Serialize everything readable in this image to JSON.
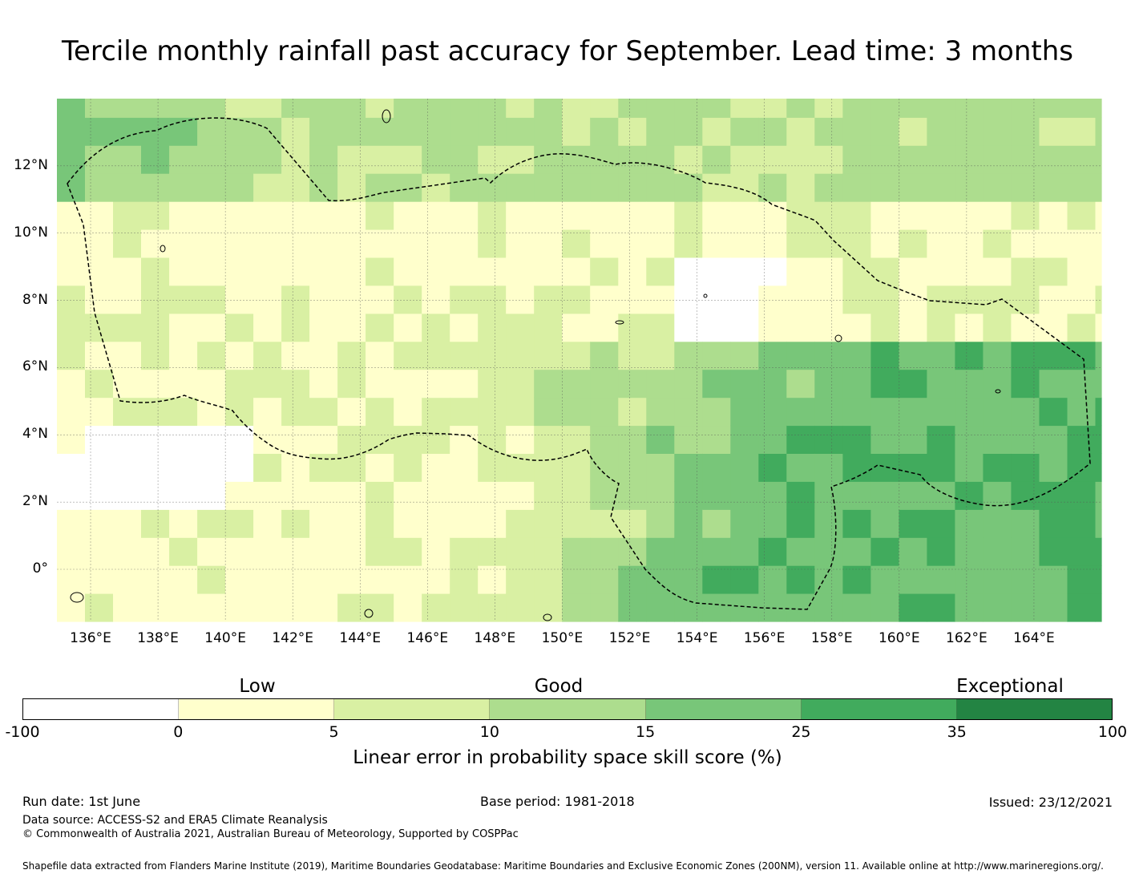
{
  "title": "Tercile monthly rainfall past accuracy for September. Lead time: 3 months",
  "map": {
    "lon_min": 135,
    "lon_max": 166,
    "lat_min": -1.55,
    "lat_max": 14,
    "grid_step_deg": 0.833,
    "lat_ticks": [
      "12°N",
      "10°N",
      "8°N",
      "6°N",
      "4°N",
      "2°N",
      "0°"
    ],
    "lat_tick_values": [
      12,
      10,
      8,
      6,
      4,
      2,
      0
    ],
    "lon_ticks": [
      "136°E",
      "138°E",
      "140°E",
      "142°E",
      "144°E",
      "146°E",
      "148°E",
      "150°E",
      "152°E",
      "154°E",
      "156°E",
      "158°E",
      "160°E",
      "162°E",
      "164°E"
    ],
    "lon_tick_values": [
      136,
      138,
      140,
      142,
      144,
      146,
      148,
      150,
      152,
      154,
      156,
      158,
      160,
      162,
      164
    ],
    "gridlines": true,
    "eez_boundary": "dashed black line"
  },
  "colorbar": {
    "category_labels": [
      "Low",
      "Good",
      "Exceptional"
    ],
    "tick_labels": [
      "-100",
      "0",
      "5",
      "10",
      "15",
      "25",
      "35",
      "100"
    ],
    "colors": [
      "#ffffff",
      "#ffffcc",
      "#d9f0a3",
      "#addd8e",
      "#78c679",
      "#41ab5d",
      "#238443"
    ],
    "title": "Linear error in probability space skill score (%)"
  },
  "footer": {
    "run_date": "Run date: 1st June",
    "base_period": "Base period: 1981-2018",
    "issued": "Issued: 23/12/2021",
    "data_source": "Data source: ACCESS-S2 and ERA5 Climate Reanalysis",
    "copyright": "© Commonwealth of Australia 2021, Australian Bureau of Meteorology, Supported by COSPPac",
    "shapefile": "Shapefile data extracted from Flanders Marine Institute (2019), Maritime Boundaries Geodatabase: Maritime Boundaries and Exclusive Economic Zones (200NM), version 11. Available online at http://www.marineregions.org/."
  }
}
